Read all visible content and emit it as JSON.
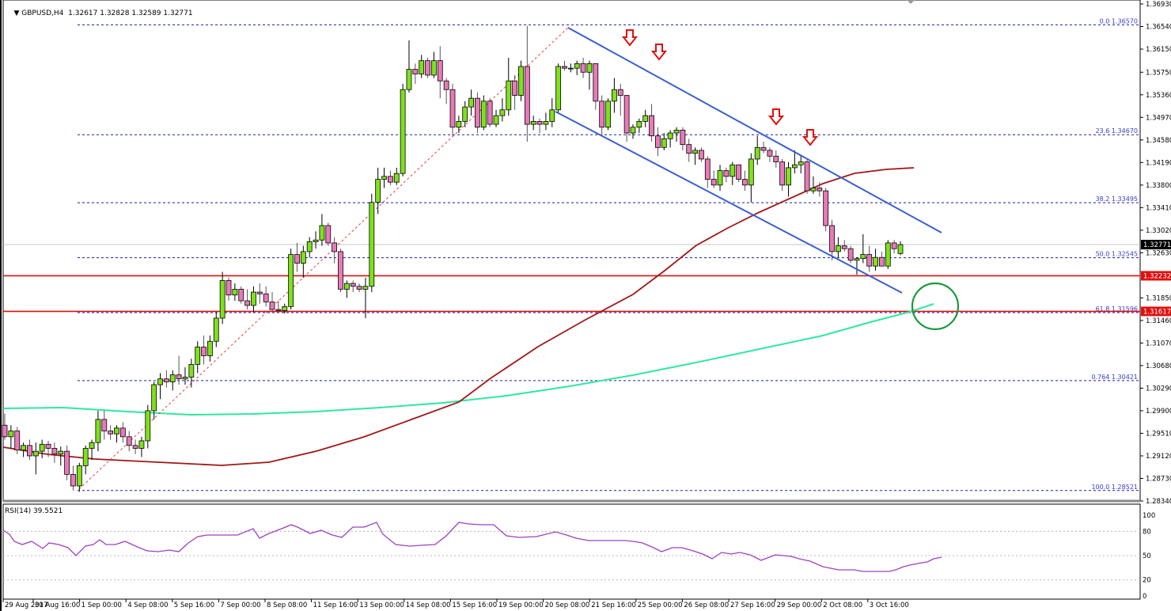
{
  "header": {
    "symbol_caption": "GBPUSD,H4",
    "ohlc": "1.32617 1.32828 1.32589 1.32771",
    "collapse_icon": "triangle-down-icon"
  },
  "rsi": {
    "caption": "RSI(14) 39.5521",
    "levels": [
      100,
      80,
      50,
      20,
      0
    ],
    "dashed_levels": [
      80,
      50,
      20
    ],
    "color": "#a040c0"
  },
  "colors": {
    "bull": "#7fe01c",
    "bear": "#e87ab8",
    "wick": "#000000",
    "fib": "#1a1ab0",
    "support": "#e01010",
    "channel": "#3a5fd0",
    "ma_slow": "#2ee8a0",
    "ma_fast": "#a01818",
    "arrow": "#e01010",
    "circle": "#1a9a3a",
    "current_price_bg": "#000000",
    "support_label_bg": "#e01010"
  },
  "chart_data": {
    "type": "candlestick",
    "title": "GBPUSD,H4",
    "price_axis": {
      "ticks": [
        "1.36930",
        "1.36540",
        "1.36150",
        "1.35750",
        "1.35360",
        "1.34970",
        "1.34580",
        "1.34190",
        "1.33800",
        "1.33410",
        "1.33020",
        "1.32630",
        "1.31850",
        "1.31460",
        "1.31070",
        "1.30680",
        "1.30290",
        "1.29900",
        "1.29510",
        "1.29120",
        "1.28730",
        "1.28340"
      ],
      "range": [
        1.2834,
        1.3693
      ]
    },
    "time_axis": {
      "ticks": [
        "29 Aug 2017",
        "30 Aug 16:00",
        "1 Sep 00:00",
        "4 Sep 08:00",
        "5 Sep 16:00",
        "7 Sep 00:00",
        "8 Sep 08:00",
        "11 Sep 16:00",
        "13 Sep 00:00",
        "14 Sep 08:00",
        "15 Sep 16:00",
        "19 Sep 00:00",
        "20 Sep 08:00",
        "21 Sep 16:00",
        "25 Sep 00:00",
        "26 Sep 08:00",
        "27 Sep 16:00",
        "29 Sep 00:00",
        "2 Oct 08:00",
        "3 Oct 16:00"
      ]
    },
    "current_price": "1.32771",
    "support_levels": [
      {
        "label": "1.32232",
        "price": 1.32232
      },
      {
        "label": "1.31617",
        "price": 1.31617
      }
    ],
    "fibonacci": [
      {
        "level": "0.0",
        "price": "1.36570"
      },
      {
        "level": "23.6",
        "price": "1.34670"
      },
      {
        "level": "38.2",
        "price": "1.33495"
      },
      {
        "level": "50.0",
        "price": "1.32545"
      },
      {
        "level": "61.8",
        "price": "1.31596"
      },
      {
        "level": "0.764",
        "price": "1.30421"
      },
      {
        "level": "100.0",
        "price": "1.28521"
      }
    ],
    "annotations": [
      "Descending blue channel from 20 Sep high to 3 Oct",
      "Four red down-arrows marking upper channel rejections",
      "Green circle at 100 SMA / 61.8% fib confluence near 1.3160",
      "Red dashed trend line from 30 Aug low to 20 Sep high"
    ],
    "moving_averages": [
      {
        "name": "Fast MA (red)",
        "color": "#a01818"
      },
      {
        "name": "Slow MA (green)",
        "color": "#2ee8a0"
      }
    ],
    "candles": [
      [
        1.2965,
        1.2985,
        1.294,
        1.2945
      ],
      [
        1.2945,
        1.2965,
        1.2925,
        1.2955
      ],
      [
        1.2955,
        1.2962,
        1.2915,
        1.2922
      ],
      [
        1.2922,
        1.2935,
        1.291,
        1.293
      ],
      [
        1.293,
        1.294,
        1.2905,
        1.2912
      ],
      [
        1.2912,
        1.2935,
        1.288,
        1.292
      ],
      [
        1.292,
        1.294,
        1.2908,
        1.2932
      ],
      [
        1.2932,
        1.2938,
        1.291,
        1.2925
      ],
      [
        1.2925,
        1.2935,
        1.29,
        1.2915
      ],
      [
        1.2915,
        1.2928,
        1.2895,
        1.292
      ],
      [
        1.292,
        1.293,
        1.287,
        1.288
      ],
      [
        1.288,
        1.2895,
        1.2852,
        1.286
      ],
      [
        1.286,
        1.29,
        1.285,
        1.2895
      ],
      [
        1.2895,
        1.293,
        1.288,
        1.2925
      ],
      [
        1.2925,
        1.294,
        1.2905,
        1.2935
      ],
      [
        1.2935,
        1.299,
        1.292,
        1.2975
      ],
      [
        1.2975,
        1.299,
        1.294,
        1.2955
      ],
      [
        1.2955,
        1.2965,
        1.294,
        1.295
      ],
      [
        1.295,
        1.2965,
        1.2935,
        1.296
      ],
      [
        1.296,
        1.297,
        1.2935,
        1.2945
      ],
      [
        1.2945,
        1.2955,
        1.292,
        1.293
      ],
      [
        1.293,
        1.294,
        1.2915,
        1.2925
      ],
      [
        1.2925,
        1.2945,
        1.291,
        1.2938
      ],
      [
        1.2938,
        1.3,
        1.2925,
        1.299
      ],
      [
        1.299,
        1.304,
        1.2975,
        1.3035
      ],
      [
        1.3035,
        1.3055,
        1.301,
        1.3045
      ],
      [
        1.3045,
        1.306,
        1.303,
        1.304
      ],
      [
        1.304,
        1.306,
        1.3025,
        1.3052
      ],
      [
        1.3052,
        1.3085,
        1.3035,
        1.3045
      ],
      [
        1.3045,
        1.3065,
        1.3035,
        1.3048
      ],
      [
        1.3048,
        1.308,
        1.303,
        1.307
      ],
      [
        1.307,
        1.311,
        1.3055,
        1.31
      ],
      [
        1.31,
        1.312,
        1.307,
        1.3085
      ],
      [
        1.3085,
        1.312,
        1.3075,
        1.311
      ],
      [
        1.311,
        1.316,
        1.31,
        1.315
      ],
      [
        1.315,
        1.323,
        1.314,
        1.3215
      ],
      [
        1.3215,
        1.322,
        1.318,
        1.319
      ],
      [
        1.319,
        1.321,
        1.318,
        1.32
      ],
      [
        1.32,
        1.3205,
        1.3175,
        1.318
      ],
      [
        1.318,
        1.32,
        1.3165,
        1.3172
      ],
      [
        1.3172,
        1.3205,
        1.316,
        1.3195
      ],
      [
        1.3195,
        1.321,
        1.3175,
        1.3192
      ],
      [
        1.3192,
        1.3205,
        1.317,
        1.3178
      ],
      [
        1.3178,
        1.3195,
        1.316,
        1.3165
      ],
      [
        1.3165,
        1.318,
        1.316,
        1.3163
      ],
      [
        1.3163,
        1.3175,
        1.3158,
        1.317
      ],
      [
        1.317,
        1.327,
        1.3165,
        1.326
      ],
      [
        1.326,
        1.328,
        1.323,
        1.3245
      ],
      [
        1.3245,
        1.3275,
        1.322,
        1.3265
      ],
      [
        1.3265,
        1.329,
        1.3255,
        1.3282
      ],
      [
        1.3282,
        1.33,
        1.327,
        1.3285
      ],
      [
        1.3285,
        1.333,
        1.3275,
        1.331
      ],
      [
        1.331,
        1.3315,
        1.3275,
        1.328
      ],
      [
        1.328,
        1.329,
        1.3245,
        1.3265
      ],
      [
        1.3265,
        1.327,
        1.3195,
        1.32
      ],
      [
        1.32,
        1.3215,
        1.3185,
        1.321
      ],
      [
        1.321,
        1.3215,
        1.3195,
        1.3205
      ],
      [
        1.3205,
        1.321,
        1.3195,
        1.32
      ],
      [
        1.32,
        1.322,
        1.315,
        1.3205
      ],
      [
        1.3205,
        1.3365,
        1.3195,
        1.335
      ],
      [
        1.335,
        1.341,
        1.333,
        1.339
      ],
      [
        1.339,
        1.341,
        1.3375,
        1.3395
      ],
      [
        1.3395,
        1.3405,
        1.338,
        1.3385
      ],
      [
        1.3385,
        1.341,
        1.338,
        1.34
      ],
      [
        1.34,
        1.3555,
        1.3395,
        1.3545
      ],
      [
        1.3545,
        1.363,
        1.354,
        1.358
      ],
      [
        1.358,
        1.359,
        1.3555,
        1.3572
      ],
      [
        1.3572,
        1.3605,
        1.3565,
        1.3595
      ],
      [
        1.3595,
        1.36,
        1.3565,
        1.357
      ],
      [
        1.357,
        1.361,
        1.3565,
        1.3595
      ],
      [
        1.3595,
        1.362,
        1.353,
        1.356
      ],
      [
        1.356,
        1.3565,
        1.352,
        1.3545
      ],
      [
        1.3545,
        1.3555,
        1.3465,
        1.348
      ],
      [
        1.348,
        1.35,
        1.347,
        1.349
      ],
      [
        1.349,
        1.3525,
        1.348,
        1.3515
      ],
      [
        1.3515,
        1.3545,
        1.35,
        1.353
      ],
      [
        1.353,
        1.354,
        1.347,
        1.348
      ],
      [
        1.348,
        1.3535,
        1.3475,
        1.3525
      ],
      [
        1.3525,
        1.353,
        1.348,
        1.3485
      ],
      [
        1.3485,
        1.351,
        1.348,
        1.35
      ],
      [
        1.35,
        1.353,
        1.349,
        1.351
      ],
      [
        1.351,
        1.36,
        1.35,
        1.356
      ],
      [
        1.356,
        1.357,
        1.351,
        1.3535
      ],
      [
        1.3535,
        1.3595,
        1.3525,
        1.3585
      ],
      [
        1.3585,
        1.3655,
        1.3455,
        1.3485
      ],
      [
        1.3485,
        1.35,
        1.3475,
        1.349
      ],
      [
        1.349,
        1.3495,
        1.347,
        1.3485
      ],
      [
        1.3485,
        1.3505,
        1.3475,
        1.349
      ],
      [
        1.349,
        1.353,
        1.348,
        1.351
      ],
      [
        1.351,
        1.359,
        1.3505,
        1.3585
      ],
      [
        1.3585,
        1.3595,
        1.3578,
        1.3582
      ],
      [
        1.3582,
        1.359,
        1.3575,
        1.3582
      ],
      [
        1.3582,
        1.3595,
        1.357,
        1.359
      ],
      [
        1.359,
        1.36,
        1.3565,
        1.3575
      ],
      [
        1.3575,
        1.3595,
        1.3545,
        1.359
      ],
      [
        1.359,
        1.359,
        1.351,
        1.3525
      ],
      [
        1.3525,
        1.3535,
        1.3465,
        1.348
      ],
      [
        1.348,
        1.353,
        1.3475,
        1.3525
      ],
      [
        1.3525,
        1.3565,
        1.3505,
        1.3545
      ],
      [
        1.3545,
        1.3555,
        1.35,
        1.3535
      ],
      [
        1.3535,
        1.3535,
        1.3455,
        1.347
      ],
      [
        1.347,
        1.3485,
        1.346,
        1.348
      ],
      [
        1.348,
        1.3495,
        1.347,
        1.349
      ],
      [
        1.349,
        1.351,
        1.348,
        1.35
      ],
      [
        1.35,
        1.352,
        1.3455,
        1.3465
      ],
      [
        1.3465,
        1.348,
        1.343,
        1.3445
      ],
      [
        1.3445,
        1.347,
        1.344,
        1.346
      ],
      [
        1.346,
        1.3475,
        1.3445,
        1.347
      ],
      [
        1.347,
        1.348,
        1.3455,
        1.3475
      ],
      [
        1.3475,
        1.348,
        1.344,
        1.345
      ],
      [
        1.345,
        1.346,
        1.342,
        1.3435
      ],
      [
        1.3435,
        1.3445,
        1.3415,
        1.344
      ],
      [
        1.344,
        1.3445,
        1.342,
        1.3425
      ],
      [
        1.3425,
        1.343,
        1.3375,
        1.339
      ],
      [
        1.339,
        1.3405,
        1.3375,
        1.338
      ],
      [
        1.338,
        1.3415,
        1.337,
        1.3405
      ],
      [
        1.3405,
        1.341,
        1.3385,
        1.3395
      ],
      [
        1.3395,
        1.342,
        1.338,
        1.3415
      ],
      [
        1.3415,
        1.3415,
        1.3385,
        1.339
      ],
      [
        1.339,
        1.3405,
        1.337,
        1.338
      ],
      [
        1.338,
        1.3435,
        1.335,
        1.3425
      ],
      [
        1.3425,
        1.3465,
        1.3415,
        1.3445
      ],
      [
        1.3445,
        1.3455,
        1.3435,
        1.344
      ],
      [
        1.344,
        1.3445,
        1.342,
        1.343
      ],
      [
        1.343,
        1.344,
        1.341,
        1.342
      ],
      [
        1.342,
        1.3425,
        1.337,
        1.338
      ],
      [
        1.338,
        1.342,
        1.336,
        1.341
      ],
      [
        1.341,
        1.344,
        1.34,
        1.3415
      ],
      [
        1.3415,
        1.343,
        1.34,
        1.342
      ],
      [
        1.342,
        1.3425,
        1.3365,
        1.337
      ],
      [
        1.337,
        1.3395,
        1.3365,
        1.3375
      ],
      [
        1.3375,
        1.3385,
        1.336,
        1.337
      ],
      [
        1.337,
        1.3375,
        1.33,
        1.331
      ],
      [
        1.331,
        1.332,
        1.325,
        1.3265
      ],
      [
        1.3265,
        1.329,
        1.3255,
        1.3275
      ],
      [
        1.3275,
        1.3285,
        1.3265,
        1.327
      ],
      [
        1.327,
        1.3275,
        1.3245,
        1.325
      ],
      [
        1.325,
        1.3255,
        1.3225,
        1.3253
      ],
      [
        1.3253,
        1.3295,
        1.3245,
        1.326
      ],
      [
        1.326,
        1.3275,
        1.323,
        1.324
      ],
      [
        1.324,
        1.327,
        1.3232,
        1.3255
      ],
      [
        1.3255,
        1.3265,
        1.324,
        1.324
      ],
      [
        1.324,
        1.3285,
        1.3235,
        1.328
      ],
      [
        1.328,
        1.3285,
        1.3262,
        1.327
      ],
      [
        1.32617,
        1.32828,
        1.32589,
        1.32771
      ]
    ]
  }
}
